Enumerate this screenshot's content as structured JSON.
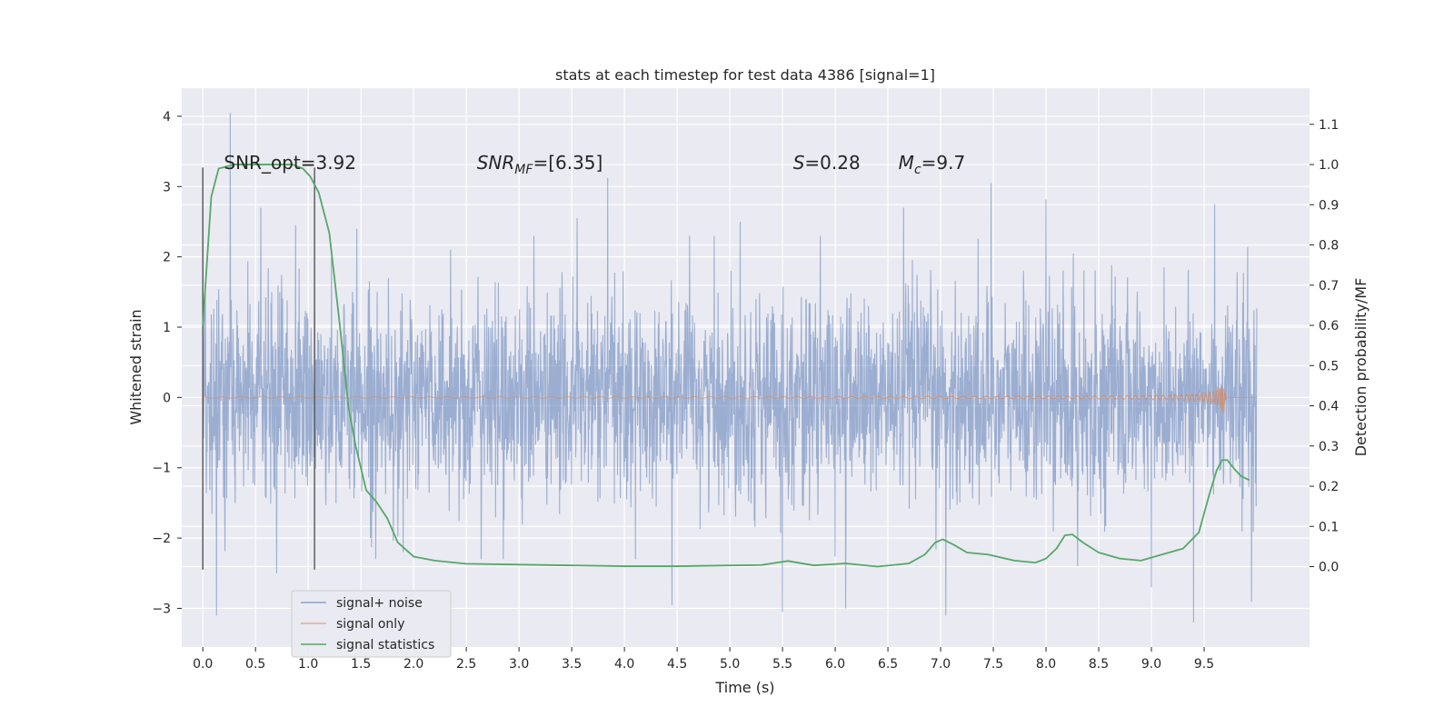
{
  "chart_data": {
    "type": "line",
    "title": "stats at each timestep for test data 4386 [signal=1]",
    "xlabel": "Time (s)",
    "ylabel_left": "Whitened strain",
    "ylabel_right": "Detection probability/MF",
    "xlim": [
      -0.2,
      10.5
    ],
    "ylim_left": [
      -3.55,
      4.4
    ],
    "ylim_right": [
      -0.2,
      1.19
    ],
    "x_ticks": [
      0.0,
      0.5,
      1.0,
      1.5,
      2.0,
      2.5,
      3.0,
      3.5,
      4.0,
      4.5,
      5.0,
      5.5,
      6.0,
      6.5,
      7.0,
      7.5,
      8.0,
      8.5,
      9.0,
      9.5
    ],
    "x_tick_labels": [
      "0.0",
      "0.5",
      "1.0",
      "1.5",
      "2.0",
      "2.5",
      "3.0",
      "3.5",
      "4.0",
      "4.5",
      "5.0",
      "5.5",
      "6.0",
      "6.5",
      "7.0",
      "7.5",
      "8.0",
      "8.5",
      "9.0",
      "9.5"
    ],
    "y_left_ticks": [
      -3,
      -2,
      -1,
      0,
      1,
      2,
      3,
      4
    ],
    "y_left_tick_labels": [
      "−3",
      "−2",
      "−1",
      "0",
      "1",
      "2",
      "3",
      "4"
    ],
    "y_right_ticks": [
      0.0,
      0.1,
      0.2,
      0.3,
      0.4,
      0.5,
      0.6,
      0.7,
      0.8,
      0.9,
      1.0,
      1.1
    ],
    "y_right_tick_labels": [
      "0.0",
      "0.1",
      "0.2",
      "0.3",
      "0.4",
      "0.5",
      "0.6",
      "0.7",
      "0.8",
      "0.9",
      "1.0",
      "1.1"
    ],
    "grid": true,
    "legend_position": "lower-left",
    "annotations": [
      {
        "text": "SNR_opt=3.92",
        "x": 0.2,
        "y": 3.25
      },
      {
        "text": "SNR",
        "sub": "MF",
        "tail": "=[6.35]",
        "italic": true,
        "x": 2.6,
        "y": 3.25
      },
      {
        "text": "S",
        "tail": "=0.28",
        "italic": true,
        "x": 5.6,
        "y": 3.25
      },
      {
        "text": "M",
        "sub": "c",
        "tail": "=9.7",
        "italic": true,
        "x": 6.6,
        "y": 3.25
      }
    ],
    "vlines": [
      {
        "x": 0.0,
        "ymin": -2.45,
        "ymax": 3.27
      },
      {
        "x": 1.06,
        "ymin": -2.45,
        "ymax": 3.27
      }
    ],
    "series": [
      {
        "name": "signal+ noise",
        "color": "#4c72b0",
        "axis": "left",
        "t_range": [
          0.0,
          10.0
        ],
        "envelope": 1.0,
        "peaks": [
          {
            "x": 0.26,
            "y": 4.05
          },
          {
            "x": 0.13,
            "y": -3.1
          },
          {
            "x": 0.55,
            "y": 2.7
          },
          {
            "x": 0.7,
            "y": -2.5
          },
          {
            "x": 0.88,
            "y": 2.45
          },
          {
            "x": 1.46,
            "y": 2.4
          },
          {
            "x": 1.9,
            "y": -2.2
          },
          {
            "x": 2.35,
            "y": 2.1
          },
          {
            "x": 2.85,
            "y": -2.3
          },
          {
            "x": 3.55,
            "y": 2.55
          },
          {
            "x": 3.84,
            "y": 3.12
          },
          {
            "x": 4.45,
            "y": -2.95
          },
          {
            "x": 5.1,
            "y": 2.5
          },
          {
            "x": 5.5,
            "y": -3.05
          },
          {
            "x": 6.1,
            "y": -3.0
          },
          {
            "x": 6.65,
            "y": 2.7
          },
          {
            "x": 7.05,
            "y": -3.1
          },
          {
            "x": 7.48,
            "y": 3.05
          },
          {
            "x": 8.0,
            "y": 2.82
          },
          {
            "x": 8.3,
            "y": -2.4
          },
          {
            "x": 9.0,
            "y": -2.7
          },
          {
            "x": 9.4,
            "y": -3.2
          },
          {
            "x": 9.6,
            "y": 2.75
          },
          {
            "x": 9.95,
            "y": -2.9
          }
        ]
      },
      {
        "name": "signal only",
        "color": "#dd8452",
        "axis": "left",
        "t_range": [
          0.0,
          10.0
        ],
        "peak_time": 9.68,
        "peak_amplitude": 0.58
      },
      {
        "name": "signal statistics",
        "color": "#55a868",
        "axis": "right",
        "points": [
          [
            0.0,
            0.6
          ],
          [
            0.08,
            0.92
          ],
          [
            0.15,
            0.99
          ],
          [
            0.3,
            1.0
          ],
          [
            0.5,
            1.0
          ],
          [
            0.7,
            1.0
          ],
          [
            0.85,
            1.0
          ],
          [
            0.95,
            0.99
          ],
          [
            1.02,
            0.97
          ],
          [
            1.1,
            0.93
          ],
          [
            1.2,
            0.83
          ],
          [
            1.3,
            0.6
          ],
          [
            1.38,
            0.4
          ],
          [
            1.45,
            0.3
          ],
          [
            1.55,
            0.19
          ],
          [
            1.65,
            0.16
          ],
          [
            1.75,
            0.12
          ],
          [
            1.85,
            0.06
          ],
          [
            2.0,
            0.025
          ],
          [
            2.2,
            0.015
          ],
          [
            2.5,
            0.007
          ],
          [
            3.0,
            0.005
          ],
          [
            3.5,
            0.003
          ],
          [
            4.0,
            0.001
          ],
          [
            4.5,
            0.001
          ],
          [
            5.0,
            0.003
          ],
          [
            5.3,
            0.004
          ],
          [
            5.55,
            0.014
          ],
          [
            5.8,
            0.003
          ],
          [
            6.1,
            0.008
          ],
          [
            6.4,
            0.0
          ],
          [
            6.7,
            0.008
          ],
          [
            6.85,
            0.03
          ],
          [
            6.95,
            0.06
          ],
          [
            7.02,
            0.068
          ],
          [
            7.12,
            0.055
          ],
          [
            7.25,
            0.035
          ],
          [
            7.45,
            0.03
          ],
          [
            7.7,
            0.015
          ],
          [
            7.9,
            0.01
          ],
          [
            8.0,
            0.02
          ],
          [
            8.1,
            0.045
          ],
          [
            8.18,
            0.078
          ],
          [
            8.25,
            0.08
          ],
          [
            8.35,
            0.06
          ],
          [
            8.5,
            0.035
          ],
          [
            8.7,
            0.02
          ],
          [
            8.9,
            0.015
          ],
          [
            9.1,
            0.03
          ],
          [
            9.3,
            0.045
          ],
          [
            9.45,
            0.085
          ],
          [
            9.55,
            0.18
          ],
          [
            9.62,
            0.24
          ],
          [
            9.67,
            0.265
          ],
          [
            9.72,
            0.265
          ],
          [
            9.78,
            0.245
          ],
          [
            9.85,
            0.225
          ],
          [
            9.93,
            0.215
          ]
        ]
      }
    ]
  }
}
